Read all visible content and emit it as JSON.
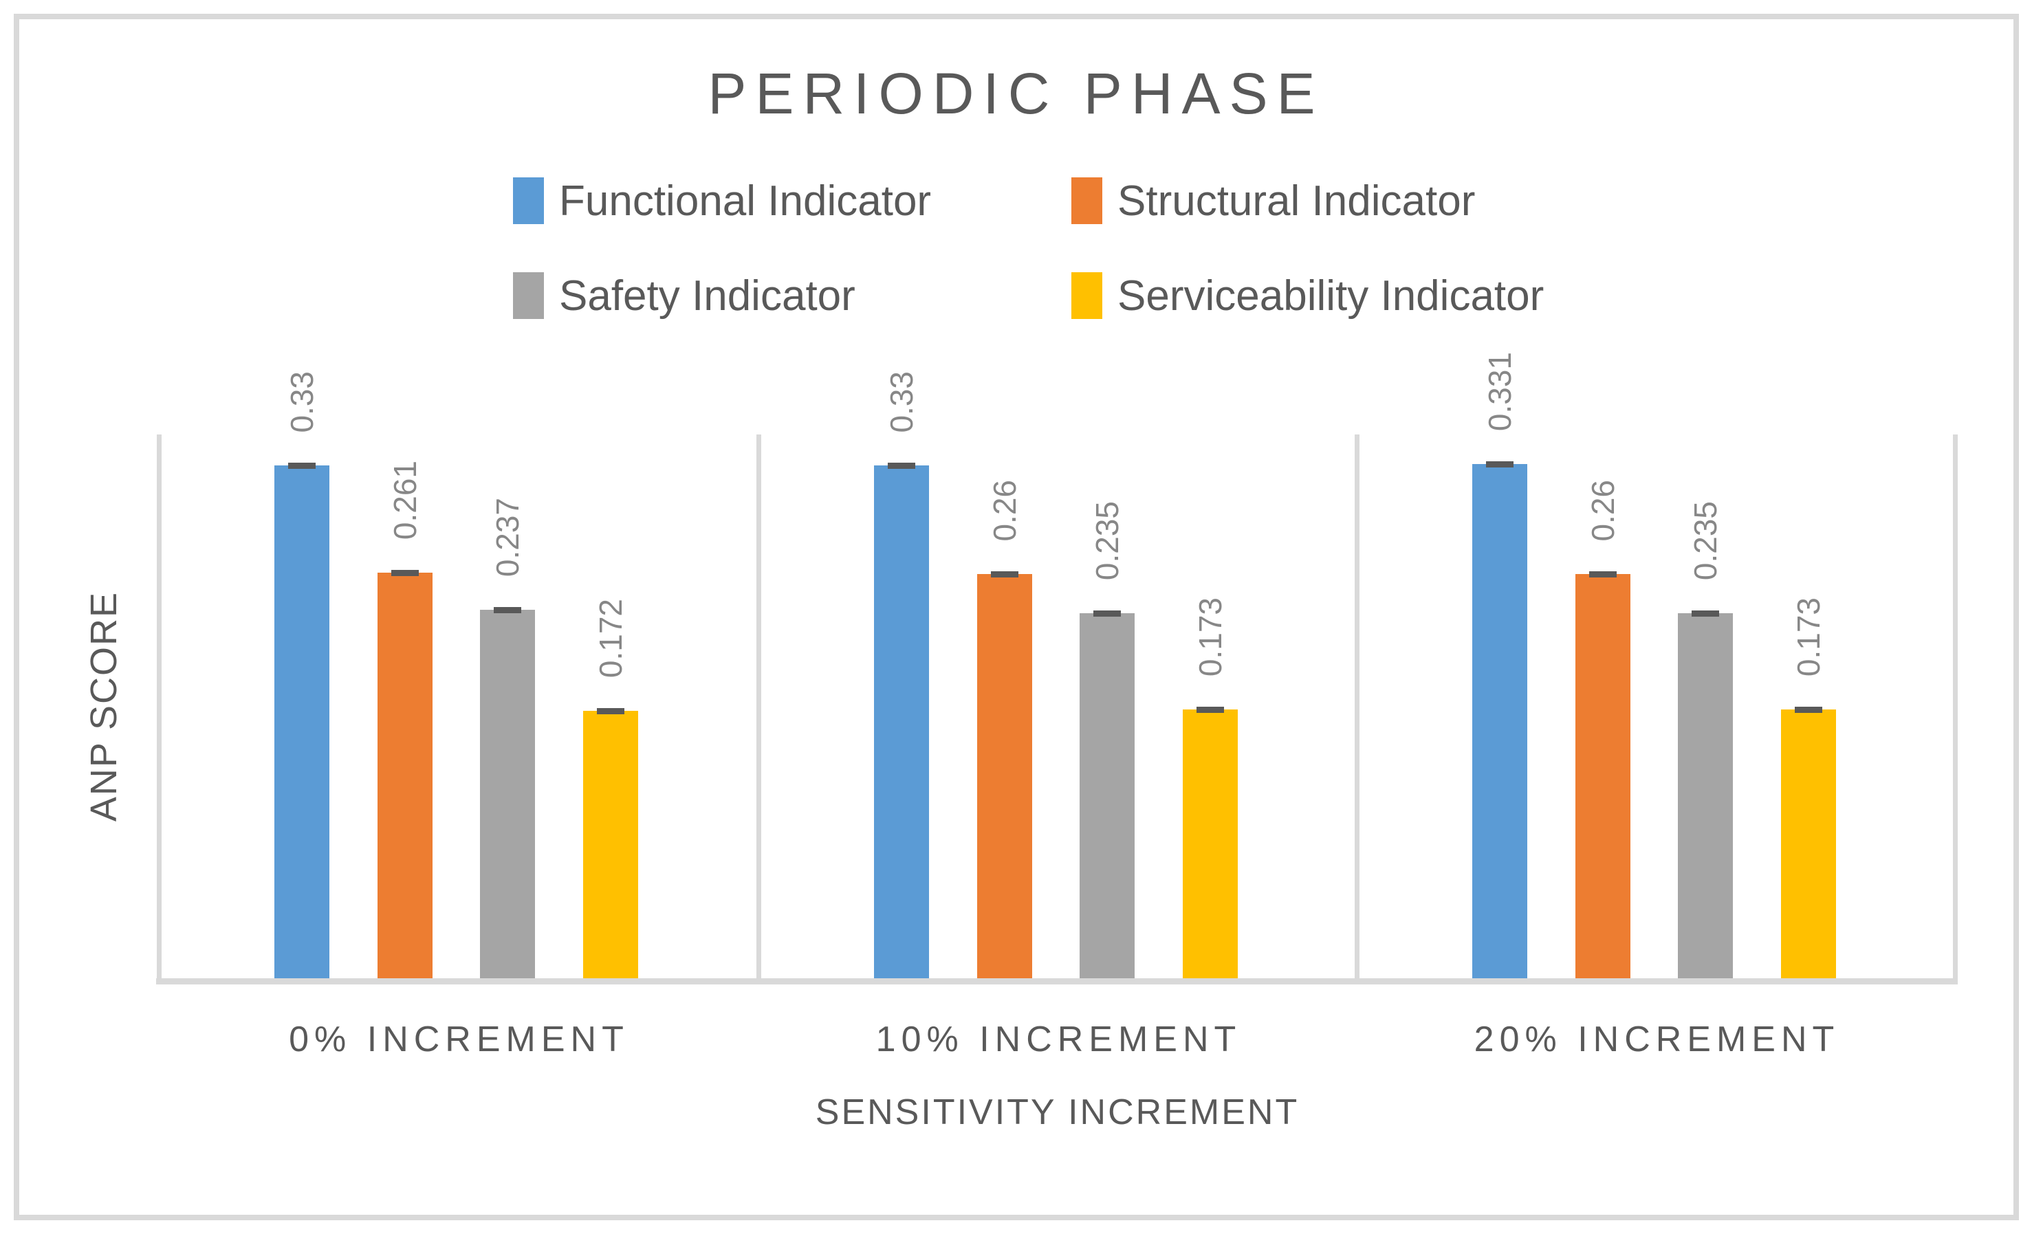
{
  "title": "PERIODIC PHASE",
  "axes": {
    "x_title": "SENSITIVITY INCREMENT",
    "y_title": "ANP SCORE"
  },
  "chart_data": {
    "type": "bar",
    "title": "PERIODIC PHASE",
    "categories": [
      "0% INCREMENT",
      "10% INCREMENT",
      "20% INCREMENT"
    ],
    "series": [
      {
        "name": "Functional Indicator",
        "color": "#5B9BD5",
        "values": [
          0.33,
          0.33,
          0.331
        ],
        "labels": [
          "0.33",
          "0.33",
          "0.331"
        ]
      },
      {
        "name": "Structural Indicator",
        "color": "#ED7D31",
        "values": [
          0.261,
          0.26,
          0.26
        ],
        "labels": [
          "0.261",
          "0.26",
          "0.26"
        ]
      },
      {
        "name": "Safety Indicator",
        "color": "#A5A5A5",
        "values": [
          0.237,
          0.235,
          0.235
        ],
        "labels": [
          "0.237",
          "0.235",
          "0.235"
        ]
      },
      {
        "name": "Serviceability Indicator",
        "color": "#FFC000",
        "values": [
          0.172,
          0.173,
          0.173
        ],
        "labels": [
          "0.172",
          "0.173",
          "0.173"
        ]
      }
    ],
    "xlabel": "SENSITIVITY INCREMENT",
    "ylabel": "ANP SCORE",
    "ylim": [
      0,
      0.35
    ],
    "y_tick_labels_visible": false,
    "grid": "vertical category separator lines only",
    "legend_position": "top, two rows by two columns",
    "data_labels": "values rotated 90° above each bar",
    "error_bar_caps": true
  },
  "colors": {
    "axis_lines": "#D9D9D9",
    "canvas_border": "#D9D9D9",
    "text_primary": "#595959",
    "data_label_text": "#878787",
    "error_cap": "#595959"
  }
}
